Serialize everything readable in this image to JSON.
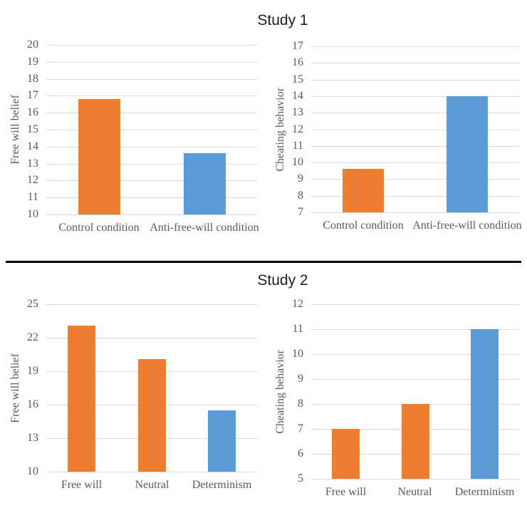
{
  "sections": [
    {
      "title": "Study 1"
    },
    {
      "title": "Study 2"
    }
  ],
  "colors": {
    "orange": "#ED7D31",
    "blue": "#5B9BD5",
    "gridline": "#D9D9D9",
    "axis_text": "#595959",
    "title_text": "#1F1F1F",
    "divider": "#000000"
  },
  "chart_data": [
    {
      "type": "bar",
      "study": "Study 1",
      "title": "",
      "xlabel": "",
      "ylabel": "Free will belief",
      "ylim": [
        10,
        20
      ],
      "tick_step": 1,
      "grid": true,
      "legend_position": "none",
      "categories": [
        "Control condition",
        "Anti-free-will condition"
      ],
      "values": [
        16.8,
        13.6
      ],
      "bar_colors": [
        "#ED7D31",
        "#5B9BD5"
      ]
    },
    {
      "type": "bar",
      "study": "Study 1",
      "title": "",
      "xlabel": "",
      "ylabel": "Cheating behavior",
      "ylim": [
        7,
        17
      ],
      "tick_step": 1,
      "grid": true,
      "legend_position": "none",
      "categories": [
        "Control condition",
        "Anti-free-will condition"
      ],
      "values": [
        9.6,
        14
      ],
      "bar_colors": [
        "#ED7D31",
        "#5B9BD5"
      ]
    },
    {
      "type": "bar",
      "study": "Study 2",
      "title": "",
      "xlabel": "",
      "ylabel": "Free will belief",
      "ylim": [
        10,
        25
      ],
      "tick_step": 3,
      "grid": true,
      "legend_position": "none",
      "categories": [
        "Free will",
        "Neutral",
        "Determinism"
      ],
      "values": [
        23.1,
        20.1,
        15.5
      ],
      "bar_colors": [
        "#ED7D31",
        "#ED7D31",
        "#5B9BD5"
      ]
    },
    {
      "type": "bar",
      "study": "Study 2",
      "title": "",
      "xlabel": "",
      "ylabel": "Cheating behavior",
      "ylim": [
        5,
        12
      ],
      "tick_step": 1,
      "grid": true,
      "legend_position": "none",
      "categories": [
        "Free will",
        "Neutral",
        "Determinism"
      ],
      "values": [
        7,
        8,
        11
      ],
      "bar_colors": [
        "#ED7D31",
        "#ED7D31",
        "#5B9BD5"
      ]
    }
  ]
}
